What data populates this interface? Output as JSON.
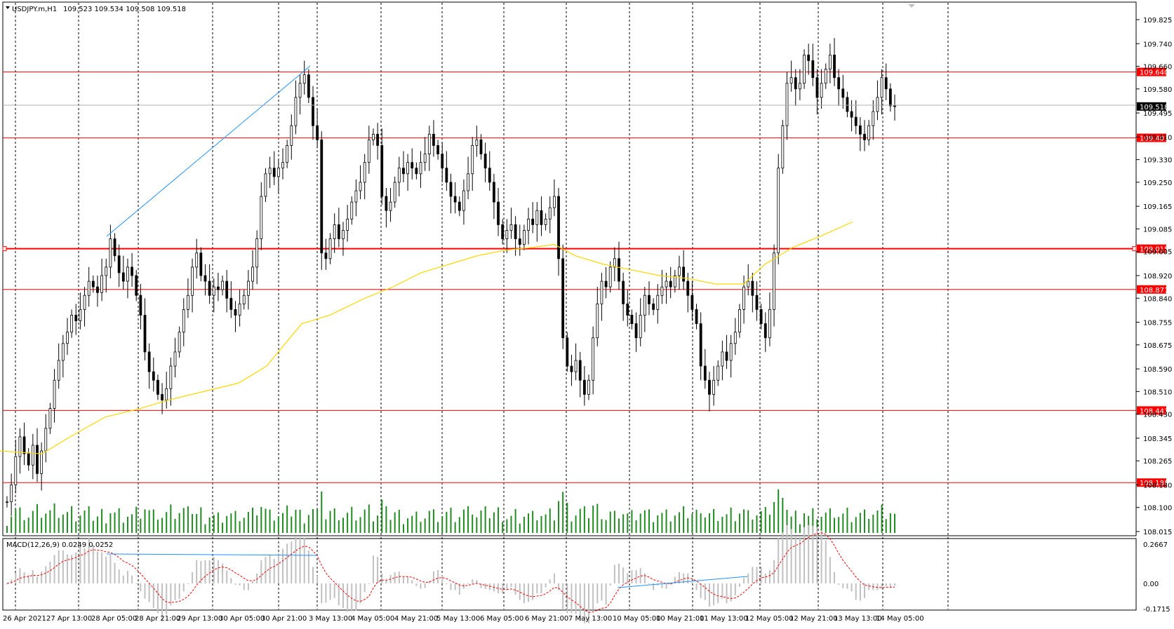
{
  "header": {
    "symbol": "USDJPY.m,H1",
    "ohlc": "109.523 109.534 109.508 109.518"
  },
  "macd": {
    "label": "MACD(12,26,9) 0.0249 0.0252",
    "ticks": [
      "0.2667",
      "0.00",
      "-0.1715"
    ]
  },
  "price_axis": {
    "ticks": [
      "109.825",
      "109.740",
      "109.660",
      "109.580",
      "109.495",
      "109.410",
      "109.330",
      "109.250",
      "109.165",
      "109.085",
      "109.005",
      "108.920",
      "108.840",
      "108.755",
      "108.675",
      "108.590",
      "108.510",
      "108.430",
      "108.345",
      "108.265",
      "108.180",
      "108.100",
      "108.015"
    ],
    "current_price": "109.518"
  },
  "levels": [
    {
      "price": "109.640",
      "label": "109.640",
      "thick": false
    },
    {
      "price": "109.407",
      "label": "109.407",
      "thick": false
    },
    {
      "price": "109.015",
      "label": "109.015",
      "thick": true
    },
    {
      "price": "108.871",
      "label": "108.871",
      "thick": false
    },
    {
      "price": "108.443",
      "label": "108.443",
      "thick": false
    },
    {
      "price": "108.188",
      "label": "108.188",
      "thick": false
    }
  ],
  "time_axis": {
    "labels": [
      "26 Apr 2021",
      "27 Apr 13:00",
      "28 Apr 05:00",
      "28 Apr 21:00",
      "29 Apr 13:00",
      "30 Apr 05:00",
      "30 Apr 21:00",
      "3 May 13:00",
      "4 May 05:00",
      "4 May 21:00",
      "5 May 13:00",
      "6 May 05:00",
      "6 May 21:00",
      "7 May 13:00",
      "10 May 05:00",
      "10 May 21:00",
      "11 May 13:00",
      "12 May 05:00",
      "12 May 21:00",
      "13 May 13:00",
      "14 May 05:00"
    ]
  },
  "colors": {
    "level_line": "#ff0000",
    "ma_line": "#ffd700",
    "volume_bar": "#228b22",
    "macd_hist": "#c0c0c0",
    "macd_signal": "#ff0000",
    "trendline": "#1e90ff",
    "grid": "#000000",
    "tag_bg_red": "#ff0000",
    "tag_bg_black": "#000000"
  },
  "chart_data": {
    "type": "candlestick",
    "title": "USDJPY.m,H1",
    "ylim": [
      108.015,
      109.825
    ],
    "close_path": [
      108.12,
      108.18,
      108.28,
      108.35,
      108.29,
      108.25,
      108.32,
      108.22,
      108.3,
      108.38,
      108.45,
      108.55,
      108.62,
      108.68,
      108.72,
      108.78,
      108.76,
      108.8,
      108.85,
      108.9,
      108.88,
      108.86,
      108.92,
      108.95,
      109.05,
      108.99,
      108.93,
      108.9,
      108.95,
      108.92,
      108.85,
      108.78,
      108.65,
      108.58,
      108.55,
      108.5,
      108.48,
      108.52,
      108.6,
      108.65,
      108.72,
      108.8,
      108.85,
      108.95,
      109.0,
      108.92,
      108.9,
      108.85,
      108.88,
      108.87,
      108.9,
      108.84,
      108.8,
      108.78,
      108.82,
      108.85,
      108.9,
      108.95,
      109.05,
      109.2,
      109.28,
      109.3,
      109.27,
      109.3,
      109.32,
      109.38,
      109.45,
      109.55,
      109.6,
      109.63,
      109.55,
      109.45,
      109.4,
      109.0,
      108.98,
      109.05,
      109.1,
      109.05,
      109.08,
      109.12,
      109.18,
      109.22,
      109.25,
      109.32,
      109.4,
      109.42,
      109.38,
      109.2,
      109.15,
      109.18,
      109.25,
      109.3,
      109.28,
      109.32,
      109.3,
      109.28,
      109.32,
      109.35,
      109.42,
      109.38,
      109.35,
      109.3,
      109.25,
      109.2,
      109.18,
      109.15,
      109.22,
      109.28,
      109.38,
      109.4,
      109.35,
      109.3,
      109.25,
      109.18,
      109.1,
      109.05,
      109.08,
      109.1,
      109.05,
      109.03,
      109.08,
      109.12,
      109.1,
      109.15,
      109.1,
      109.12,
      109.16,
      109.2,
      108.98,
      108.7,
      108.6,
      108.58,
      108.62,
      108.55,
      108.5,
      108.55,
      108.7,
      108.82,
      108.9,
      108.88,
      108.95,
      108.98,
      108.9,
      108.82,
      108.78,
      108.75,
      108.7,
      108.78,
      108.85,
      108.82,
      108.8,
      108.85,
      108.88,
      108.9,
      108.88,
      108.92,
      108.95,
      108.9,
      108.85,
      108.8,
      108.75,
      108.6,
      108.55,
      108.5,
      108.55,
      108.6,
      108.65,
      108.62,
      108.68,
      108.72,
      108.8,
      108.88,
      108.9,
      108.85,
      108.8,
      108.75,
      108.7,
      108.8,
      109.0,
      109.3,
      109.45,
      109.6,
      109.62,
      109.58,
      109.6,
      109.7,
      109.68,
      109.62,
      109.55,
      109.6,
      109.65,
      109.7,
      109.62,
      109.58,
      109.55,
      109.5,
      109.48,
      109.45,
      109.42,
      109.4,
      109.45,
      109.5,
      109.55,
      109.62,
      109.58,
      109.52,
      109.518
    ],
    "ma_line": [
      [
        0,
        108.3
      ],
      [
        60,
        108.29
      ],
      [
        100,
        108.35
      ],
      [
        150,
        108.42
      ],
      [
        200,
        108.45
      ],
      [
        240,
        108.48
      ],
      [
        290,
        108.51
      ],
      [
        340,
        108.54
      ],
      [
        380,
        108.6
      ],
      [
        430,
        108.75
      ],
      [
        470,
        108.78
      ],
      [
        520,
        108.84
      ],
      [
        560,
        108.88
      ],
      [
        600,
        108.93
      ],
      [
        640,
        108.96
      ],
      [
        680,
        108.99
      ],
      [
        720,
        109.01
      ],
      [
        760,
        109.02
      ],
      [
        790,
        109.03
      ],
      [
        820,
        108.99
      ],
      [
        860,
        108.96
      ],
      [
        900,
        108.94
      ],
      [
        940,
        108.92
      ],
      [
        980,
        108.91
      ],
      [
        1020,
        108.89
      ],
      [
        1060,
        108.89
      ],
      [
        1090,
        108.96
      ],
      [
        1130,
        109.02
      ],
      [
        1170,
        109.06
      ],
      [
        1215,
        109.11
      ]
    ],
    "series": [
      {
        "name": "MACD(12,26,9)",
        "values": []
      }
    ]
  }
}
